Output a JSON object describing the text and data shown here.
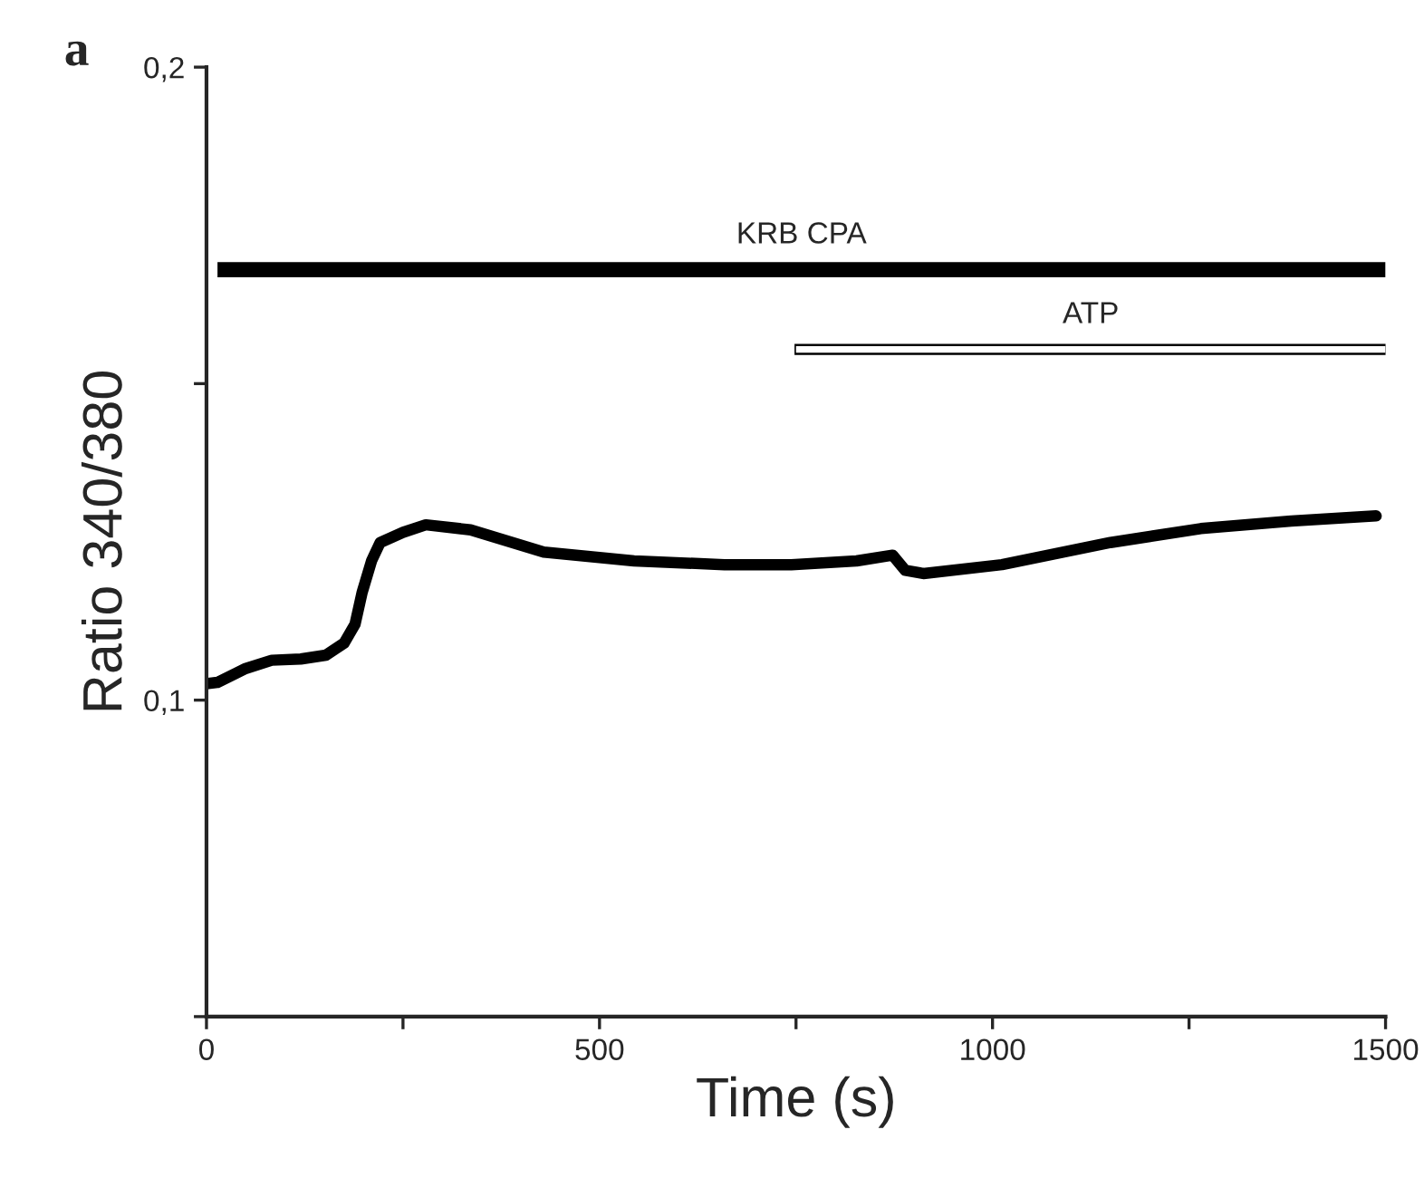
{
  "chart_data": {
    "type": "line",
    "xlabel": "Time (s)",
    "ylabel": "Ratio 340/380",
    "annotations": [
      "a"
    ],
    "xlim": [
      0,
      1500
    ],
    "xticks": [
      0,
      {
        "value": 250,
        "label": null
      },
      500,
      {
        "value": 750,
        "label": null
      },
      1000,
      {
        "value": 1250,
        "label": null
      },
      1500
    ],
    "ylim": [
      0.05,
      0.2
    ],
    "yticks": [
      {
        "value": 0.05,
        "label": null
      },
      {
        "value": 0.1,
        "label": "0,1"
      },
      {
        "value": 0.15,
        "label": null
      },
      {
        "value": 0.2,
        "label": "0,2"
      }
    ],
    "grid": false,
    "legend": false,
    "marker": "none",
    "line_style": "solid",
    "series": [
      {
        "color": "#000000",
        "x": [
          0,
          14,
          50,
          83,
          120,
          152,
          175,
          189,
          198,
          210,
          221,
          250,
          279,
          336,
          429,
          544,
          659,
          744,
          827,
          873,
          889,
          912,
          1012,
          1150,
          1265,
          1380,
          1488
        ],
        "values": [
          0.1026,
          0.1028,
          0.105,
          0.1063,
          0.1065,
          0.1071,
          0.109,
          0.112,
          0.117,
          0.122,
          0.1249,
          0.1265,
          0.1277,
          0.1269,
          0.1234,
          0.122,
          0.1214,
          0.1214,
          0.122,
          0.1229,
          0.1205,
          0.12,
          0.1214,
          0.1249,
          0.1271,
          0.1283,
          0.1291
        ]
      },
      {
        "name": "KRB CPA",
        "color": "#000000",
        "x": [
          14,
          1500
        ],
        "values": [
          0.168,
          0.168
        ]
      },
      {
        "name": "ATP",
        "color": "#ffffff",
        "x": [
          750,
          1500
        ],
        "values": [
          0.1554,
          0.1554
        ]
      }
    ]
  }
}
